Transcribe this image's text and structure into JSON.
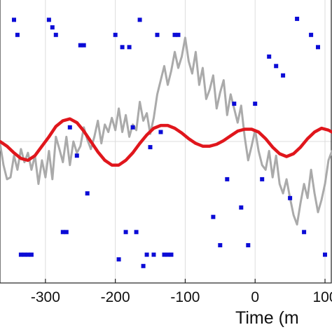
{
  "chart_data": {
    "type": "line",
    "xlabel": "Time (m",
    "xlim": [
      -365,
      110
    ],
    "ylim": [
      -1.5,
      1.5
    ],
    "grid": true,
    "xticks": [
      -300,
      -200,
      -100,
      0,
      100
    ],
    "xtick_labels": [
      "-300",
      "-200",
      "-100",
      "0",
      "100"
    ],
    "series": [
      {
        "type": "line",
        "color": "#aaaaaa",
        "x": [
          -365,
          -360,
          -355,
          -350,
          -345,
          -340,
          -335,
          -330,
          -325,
          -320,
          -315,
          -310,
          -305,
          -300,
          -295,
          -290,
          -285,
          -280,
          -275,
          -270,
          -265,
          -260,
          -255,
          -250,
          -245,
          -240,
          -235,
          -230,
          -225,
          -220,
          -215,
          -210,
          -205,
          -200,
          -195,
          -190,
          -185,
          -180,
          -175,
          -170,
          -165,
          -160,
          -155,
          -150,
          -145,
          -140,
          -135,
          -130,
          -125,
          -120,
          -115,
          -110,
          -105,
          -100,
          -95,
          -90,
          -85,
          -80,
          -75,
          -70,
          -65,
          -60,
          -55,
          -50,
          -45,
          -40,
          -35,
          -30,
          -25,
          -20,
          -15,
          -10,
          -5,
          0,
          5,
          10,
          15,
          20,
          25,
          30,
          35,
          40,
          45,
          50,
          55,
          60,
          65,
          70,
          75,
          80,
          85,
          90,
          95,
          100,
          105,
          110
        ],
        "y": [
          -0.02,
          -0.25,
          -0.4,
          -0.38,
          -0.15,
          -0.3,
          -0.08,
          -0.22,
          -0.12,
          -0.3,
          -0.15,
          -0.45,
          -0.2,
          -0.38,
          -0.1,
          -0.4,
          0.05,
          -0.08,
          -0.22,
          0.05,
          -0.25,
          0.0,
          -0.12,
          -0.05,
          0.15,
          0.02,
          -0.08,
          0.05,
          0.22,
          -0.02,
          0.18,
          0.1,
          0.25,
          0.12,
          0.35,
          0.1,
          0.28,
          0.05,
          0.18,
          0.12,
          0.42,
          0.22,
          0.3,
          0.08,
          0.25,
          0.5,
          0.65,
          0.8,
          0.6,
          0.75,
          0.95,
          0.78,
          0.9,
          1.1,
          0.85,
          0.72,
          0.95,
          0.6,
          0.78,
          0.45,
          0.55,
          0.7,
          0.35,
          0.52,
          0.65,
          0.28,
          0.5,
          0.35,
          0.2,
          0.38,
          0.05,
          -0.2,
          -0.05,
          0.12,
          -0.1,
          -0.25,
          -0.3,
          -0.1,
          -0.38,
          -0.15,
          -0.45,
          -0.55,
          -0.4,
          -0.6,
          -0.78,
          -0.88,
          -0.65,
          -0.45,
          -0.6,
          -0.3,
          -0.55,
          -0.75,
          -0.62,
          -0.45,
          -0.2,
          -0.1
        ]
      },
      {
        "type": "line",
        "color": "#e0161c",
        "x": [
          -365,
          -355,
          -345,
          -335,
          -325,
          -315,
          -305,
          -295,
          -285,
          -275,
          -265,
          -255,
          -245,
          -235,
          -225,
          -215,
          -205,
          -195,
          -185,
          -175,
          -165,
          -155,
          -145,
          -135,
          -125,
          -115,
          -105,
          -95,
          -85,
          -75,
          -65,
          -55,
          -45,
          -35,
          -25,
          -15,
          -5,
          5,
          15,
          25,
          35,
          45,
          55,
          65,
          75,
          85,
          95,
          105,
          110
        ],
        "y": [
          0.0,
          -0.05,
          -0.12,
          -0.18,
          -0.2,
          -0.15,
          -0.05,
          0.05,
          0.16,
          0.22,
          0.24,
          0.2,
          0.11,
          0.0,
          -0.11,
          -0.2,
          -0.25,
          -0.25,
          -0.2,
          -0.12,
          -0.02,
          0.07,
          0.14,
          0.17,
          0.17,
          0.14,
          0.09,
          0.03,
          -0.02,
          -0.05,
          -0.05,
          -0.03,
          0.01,
          0.06,
          0.11,
          0.13,
          0.13,
          0.1,
          0.03,
          -0.06,
          -0.13,
          -0.16,
          -0.13,
          -0.06,
          0.03,
          0.1,
          0.14,
          0.12,
          0.1
        ]
      },
      {
        "type": "scatter",
        "color": "#0b0bd6",
        "x": [
          -345,
          -340,
          -335,
          -330,
          -325,
          -320,
          -295,
          -290,
          -285,
          -275,
          -270,
          -265,
          -255,
          -250,
          -245,
          -240,
          -200,
          -195,
          -190,
          -185,
          -180,
          -175,
          -170,
          -165,
          -160,
          -155,
          -150,
          -145,
          -140,
          -135,
          -130,
          -125,
          -120,
          -115,
          -110,
          -60,
          -50,
          -40,
          -30,
          -20,
          -10,
          0,
          10,
          20,
          30,
          40,
          50,
          60,
          70,
          80,
          90,
          100
        ],
        "y": [
          1.29,
          1.13,
          -1.2,
          -1.2,
          -1.2,
          -1.2,
          1.29,
          1.21,
          1.13,
          -0.96,
          -0.96,
          0.15,
          -0.15,
          1.02,
          1.02,
          -0.55,
          1.13,
          -1.25,
          1.0,
          -0.96,
          1.0,
          0.15,
          -0.96,
          1.29,
          -1.32,
          -1.2,
          -0.06,
          -1.2,
          1.13,
          0.1,
          -1.2,
          -1.2,
          -1.2,
          1.13,
          1.13,
          -0.8,
          -1.1,
          -0.4,
          0.4,
          -0.7,
          -1.1,
          0.4,
          -0.4,
          0.9,
          0.8,
          0.7,
          -0.6,
          1.3,
          -0.96,
          1.13,
          1.0,
          -1.2
        ]
      }
    ]
  }
}
